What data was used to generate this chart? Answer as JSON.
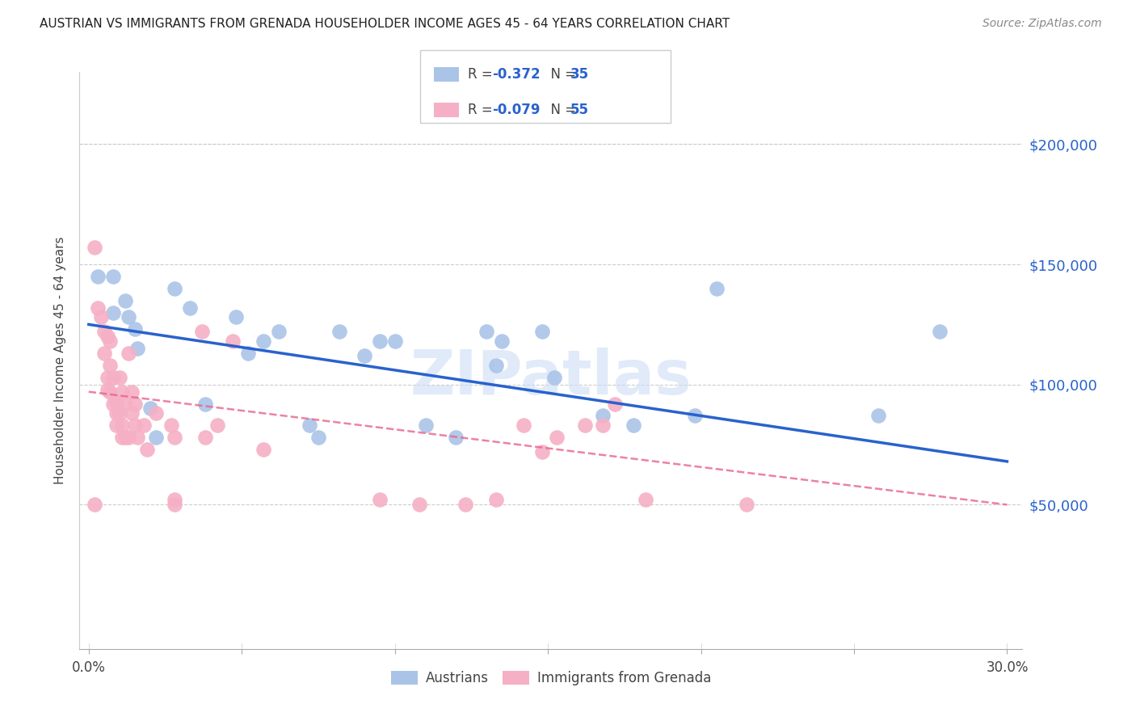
{
  "title": "AUSTRIAN VS IMMIGRANTS FROM GRENADA HOUSEHOLDER INCOME AGES 45 - 64 YEARS CORRELATION CHART",
  "source": "Source: ZipAtlas.com",
  "ylabel": "Householder Income Ages 45 - 64 years",
  "ytick_labels": [
    "$50,000",
    "$100,000",
    "$150,000",
    "$200,000"
  ],
  "ytick_vals": [
    50000,
    100000,
    150000,
    200000
  ],
  "ylim": [
    -10000,
    230000
  ],
  "xlim": [
    -0.003,
    0.305
  ],
  "legend_R_blue": "-0.372",
  "legend_N_blue": "35",
  "legend_R_pink": "-0.079",
  "legend_N_pink": "55",
  "blue_color": "#aac4e8",
  "pink_color": "#f5b0c5",
  "blue_line_color": "#2962cc",
  "pink_line_color": "#e8638a",
  "blue_scatter": [
    [
      0.003,
      145000
    ],
    [
      0.008,
      145000
    ],
    [
      0.008,
      130000
    ],
    [
      0.012,
      135000
    ],
    [
      0.013,
      128000
    ],
    [
      0.015,
      123000
    ],
    [
      0.016,
      115000
    ],
    [
      0.02,
      90000
    ],
    [
      0.022,
      78000
    ],
    [
      0.028,
      140000
    ],
    [
      0.033,
      132000
    ],
    [
      0.038,
      92000
    ],
    [
      0.048,
      128000
    ],
    [
      0.052,
      113000
    ],
    [
      0.057,
      118000
    ],
    [
      0.062,
      122000
    ],
    [
      0.072,
      83000
    ],
    [
      0.075,
      78000
    ],
    [
      0.082,
      122000
    ],
    [
      0.09,
      112000
    ],
    [
      0.095,
      118000
    ],
    [
      0.1,
      118000
    ],
    [
      0.11,
      83000
    ],
    [
      0.12,
      78000
    ],
    [
      0.13,
      122000
    ],
    [
      0.133,
      108000
    ],
    [
      0.135,
      118000
    ],
    [
      0.148,
      122000
    ],
    [
      0.152,
      103000
    ],
    [
      0.168,
      87000
    ],
    [
      0.178,
      83000
    ],
    [
      0.198,
      87000
    ],
    [
      0.205,
      140000
    ],
    [
      0.258,
      87000
    ],
    [
      0.278,
      122000
    ]
  ],
  "pink_scatter": [
    [
      0.002,
      157000
    ],
    [
      0.003,
      132000
    ],
    [
      0.004,
      128000
    ],
    [
      0.005,
      122000
    ],
    [
      0.005,
      113000
    ],
    [
      0.006,
      120000
    ],
    [
      0.006,
      103000
    ],
    [
      0.006,
      98000
    ],
    [
      0.007,
      118000
    ],
    [
      0.007,
      108000
    ],
    [
      0.007,
      97000
    ],
    [
      0.008,
      92000
    ],
    [
      0.008,
      103000
    ],
    [
      0.009,
      93000
    ],
    [
      0.009,
      88000
    ],
    [
      0.009,
      83000
    ],
    [
      0.01,
      103000
    ],
    [
      0.01,
      88000
    ],
    [
      0.011,
      78000
    ],
    [
      0.011,
      97000
    ],
    [
      0.011,
      83000
    ],
    [
      0.012,
      78000
    ],
    [
      0.012,
      92000
    ],
    [
      0.013,
      78000
    ],
    [
      0.013,
      113000
    ],
    [
      0.014,
      97000
    ],
    [
      0.014,
      88000
    ],
    [
      0.015,
      83000
    ],
    [
      0.015,
      92000
    ],
    [
      0.016,
      78000
    ],
    [
      0.018,
      83000
    ],
    [
      0.019,
      73000
    ],
    [
      0.022,
      88000
    ],
    [
      0.027,
      83000
    ],
    [
      0.028,
      78000
    ],
    [
      0.028,
      52000
    ],
    [
      0.037,
      122000
    ],
    [
      0.038,
      78000
    ],
    [
      0.042,
      83000
    ],
    [
      0.047,
      118000
    ],
    [
      0.057,
      73000
    ],
    [
      0.002,
      50000
    ],
    [
      0.028,
      50000
    ],
    [
      0.168,
      83000
    ],
    [
      0.172,
      92000
    ],
    [
      0.182,
      52000
    ],
    [
      0.215,
      50000
    ],
    [
      0.095,
      52000
    ],
    [
      0.108,
      50000
    ],
    [
      0.123,
      50000
    ],
    [
      0.133,
      52000
    ],
    [
      0.142,
      83000
    ],
    [
      0.148,
      72000
    ],
    [
      0.153,
      78000
    ],
    [
      0.162,
      83000
    ]
  ],
  "blue_trendline_x": [
    0.0,
    0.3
  ],
  "blue_trendline_y": [
    125000,
    68000
  ],
  "pink_trendline_x": [
    0.0,
    0.3
  ],
  "pink_trendline_y": [
    97000,
    50000
  ],
  "watermark": "ZIPatlas",
  "background_color": "#ffffff",
  "grid_color": "#cccccc",
  "text_color_blue": "#2962cc",
  "text_color_dark": "#444444"
}
